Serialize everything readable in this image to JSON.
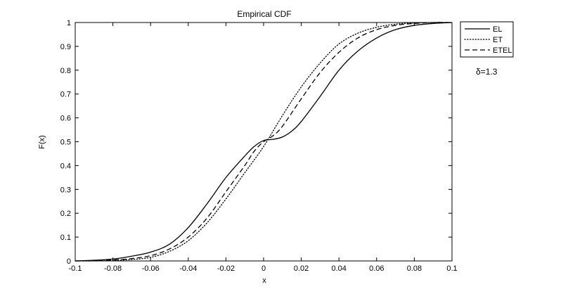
{
  "chart_data": {
    "type": "line",
    "title": "Empirical CDF",
    "xlabel": "x",
    "ylabel": "F(x)",
    "xlim": [
      -0.1,
      0.1
    ],
    "ylim": [
      0,
      1
    ],
    "x_ticks": [
      -0.1,
      -0.08,
      -0.06,
      -0.04,
      -0.02,
      0,
      0.02,
      0.04,
      0.06,
      0.08,
      0.1
    ],
    "x_tick_labels": [
      "-0.1",
      "-0.08",
      "-0.06",
      "-0.04",
      "-0.02",
      "0",
      "0.02",
      "0.04",
      "0.06",
      "0.08",
      "0.1"
    ],
    "y_ticks": [
      0,
      0.1,
      0.2,
      0.3,
      0.4,
      0.5,
      0.6,
      0.7,
      0.8,
      0.9,
      1
    ],
    "y_tick_labels": [
      "0",
      "0.1",
      "0.2",
      "0.3",
      "0.4",
      "0.5",
      "0.6",
      "0.7",
      "0.8",
      "0.9",
      "1"
    ],
    "grid": false,
    "legend_position": "outside-top-right",
    "annotation": "δ=1.3",
    "series": [
      {
        "name": "EL",
        "style": "solid",
        "color": "#000000",
        "x": [
          -0.1,
          -0.09,
          -0.08,
          -0.07,
          -0.06,
          -0.05,
          -0.04,
          -0.03,
          -0.02,
          -0.01,
          -0.005,
          0,
          0.005,
          0.01,
          0.015,
          0.02,
          0.03,
          0.04,
          0.05,
          0.06,
          0.07,
          0.08,
          0.09,
          0.1
        ],
        "y": [
          0.0,
          0.003,
          0.008,
          0.02,
          0.037,
          0.07,
          0.14,
          0.24,
          0.35,
          0.44,
          0.48,
          0.505,
          0.51,
          0.52,
          0.545,
          0.585,
          0.69,
          0.8,
          0.88,
          0.935,
          0.97,
          0.988,
          0.996,
          1.0
        ]
      },
      {
        "name": "ET",
        "style": "dotted",
        "color": "#000000",
        "x": [
          -0.1,
          -0.09,
          -0.08,
          -0.07,
          -0.06,
          -0.05,
          -0.04,
          -0.03,
          -0.02,
          -0.01,
          0,
          0.01,
          0.02,
          0.03,
          0.04,
          0.05,
          0.06,
          0.07,
          0.08,
          0.09,
          0.1
        ],
        "y": [
          0.0,
          0.0,
          0.002,
          0.006,
          0.015,
          0.04,
          0.085,
          0.16,
          0.26,
          0.37,
          0.48,
          0.61,
          0.73,
          0.83,
          0.91,
          0.955,
          0.98,
          0.993,
          0.998,
          1.0,
          1.0
        ]
      },
      {
        "name": "ETEL",
        "style": "dashed",
        "color": "#000000",
        "x": [
          -0.1,
          -0.09,
          -0.08,
          -0.07,
          -0.06,
          -0.05,
          -0.04,
          -0.03,
          -0.02,
          -0.01,
          -0.005,
          0,
          0.005,
          0.01,
          0.02,
          0.03,
          0.04,
          0.05,
          0.06,
          0.07,
          0.08,
          0.09,
          0.1
        ],
        "y": [
          0.0,
          0.001,
          0.004,
          0.01,
          0.022,
          0.05,
          0.1,
          0.18,
          0.29,
          0.4,
          0.46,
          0.5,
          0.525,
          0.565,
          0.68,
          0.79,
          0.875,
          0.935,
          0.97,
          0.988,
          0.996,
          1.0,
          1.0
        ]
      }
    ]
  }
}
